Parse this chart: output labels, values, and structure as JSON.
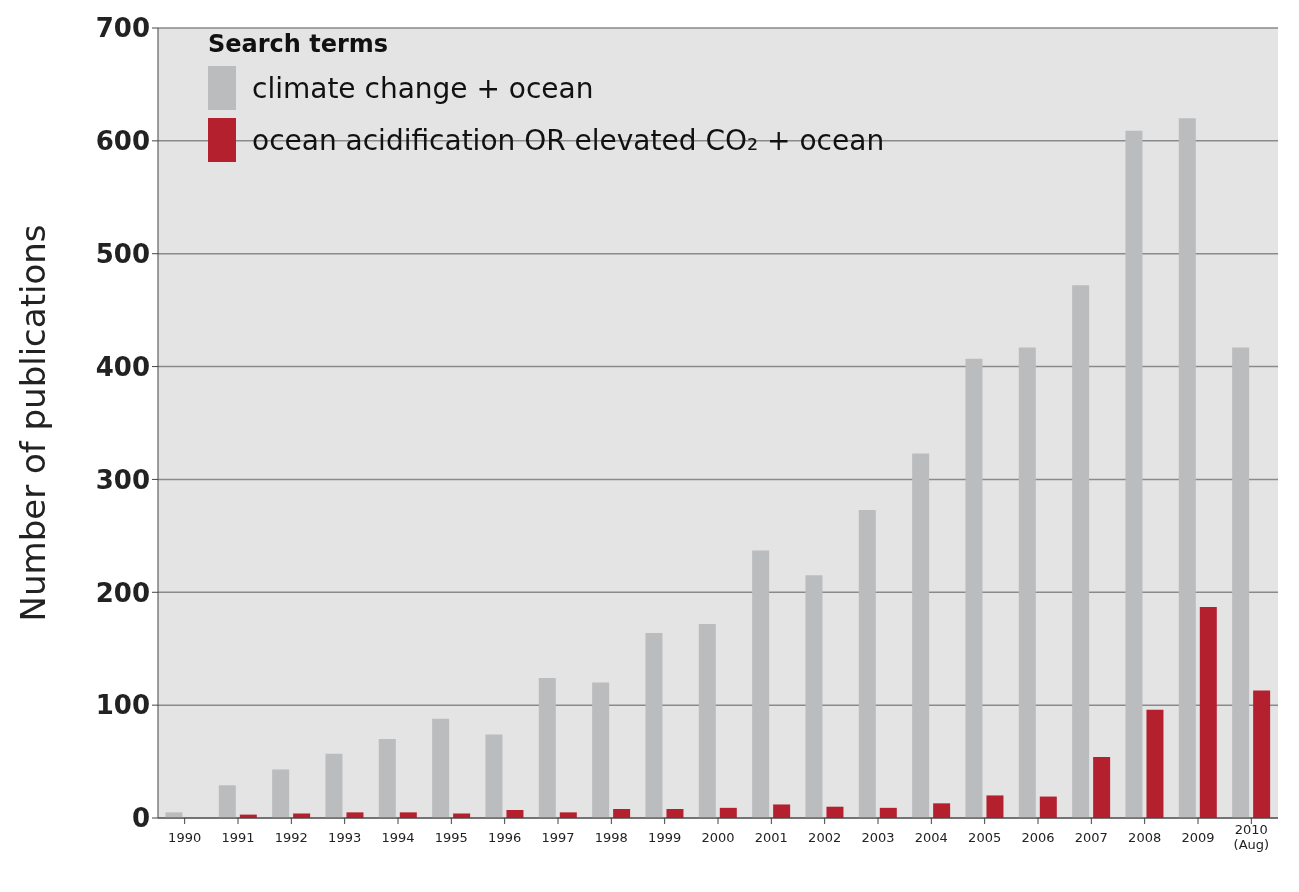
{
  "chart_data": {
    "type": "bar",
    "ylabel": "Number of publications",
    "legend_title": "Search terms",
    "categories": [
      "1990",
      "1991",
      "1992",
      "1993",
      "1994",
      "1995",
      "1996",
      "1997",
      "1998",
      "1999",
      "2000",
      "2001",
      "2002",
      "2003",
      "2004",
      "2005",
      "2006",
      "2007",
      "2008",
      "2009",
      "2010\n(Aug)"
    ],
    "series": [
      {
        "name": "climate change + ocean",
        "color": "#bbbcbe",
        "values": [
          5,
          29,
          43,
          57,
          70,
          88,
          74,
          124,
          120,
          164,
          172,
          237,
          215,
          273,
          323,
          407,
          417,
          472,
          609,
          620,
          417
        ]
      },
      {
        "name": "ocean acidification OR elevated CO₂ + ocean",
        "color": "#b5202e",
        "values": [
          null,
          3,
          4,
          5,
          5,
          4,
          7,
          5,
          8,
          8,
          9,
          12,
          10,
          9,
          13,
          20,
          19,
          54,
          96,
          187,
          113
        ]
      }
    ],
    "ylim": [
      0,
      700
    ],
    "yticks": [
      0,
      100,
      200,
      300,
      400,
      500,
      600,
      700
    ],
    "grid": "y",
    "legend": "top left"
  }
}
